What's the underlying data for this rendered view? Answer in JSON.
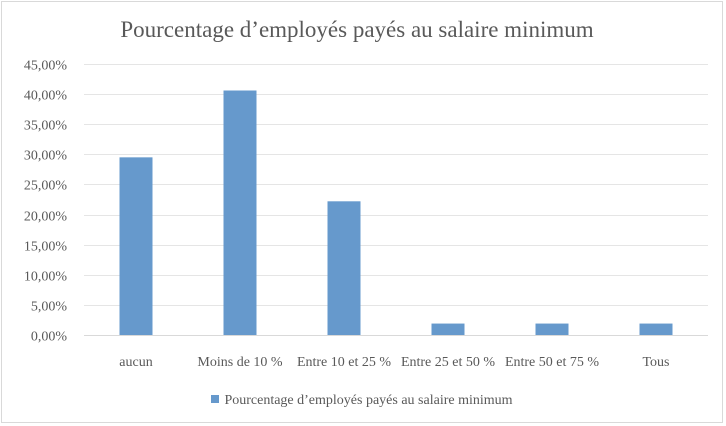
{
  "chart_data": {
    "type": "bar",
    "title": "Pourcentage d’employés payés au salaire minimum",
    "xlabel": "",
    "ylabel": "",
    "categories": [
      "aucun",
      "Moins de 10 %",
      "Entre 10 et 25 %",
      "Entre 25 et 50 %",
      "Entre 50 et 75 %",
      "Tous"
    ],
    "series": [
      {
        "name": "Pourcentage d’employés payés au salaire minimum",
        "values": [
          29.5,
          40.6,
          22.2,
          1.9,
          1.9,
          1.9
        ],
        "color": "#6699cc"
      }
    ],
    "ylim": [
      0,
      45
    ],
    "yticks": [
      0,
      5,
      10,
      15,
      20,
      25,
      30,
      35,
      40,
      45
    ],
    "ytick_labels": [
      "0,00%",
      "5,00%",
      "10,00%",
      "15,00%",
      "20,00%",
      "25,00%",
      "30,00%",
      "35,00%",
      "40,00%",
      "45,00%"
    ],
    "grid": true,
    "legend_position": "bottom"
  }
}
